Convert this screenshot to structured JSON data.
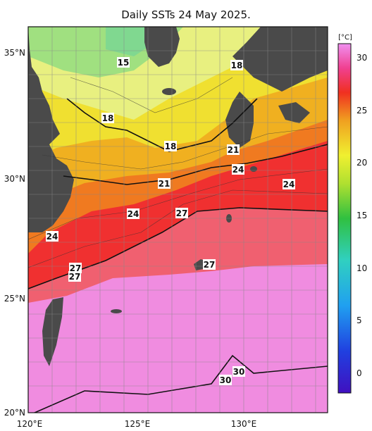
{
  "title": "Daily SSTs 24 May 2025.",
  "colorbar": {
    "unit": "[°C]",
    "ticks": [
      "30",
      "25",
      "20",
      "15",
      "10",
      "5",
      "0"
    ]
  },
  "axes": {
    "lat_labels": [
      "35°N",
      "30°N",
      "25°N",
      "20°N"
    ],
    "lon_labels": [
      "120°E",
      "125°E",
      "130°E"
    ]
  },
  "contour_labels": [
    "15",
    "18",
    "18",
    "18",
    "21",
    "21",
    "24",
    "24",
    "24",
    "24",
    "27",
    "27",
    "27",
    "27",
    "30",
    "30"
  ],
  "colors": {
    "land": "#4a4a4a",
    "sst_30": "#f08ce0",
    "sst_27": "#f03040",
    "sst_24": "#f08020",
    "sst_21": "#f0d020",
    "sst_18": "#f0f070",
    "sst_15": "#90e070"
  }
}
